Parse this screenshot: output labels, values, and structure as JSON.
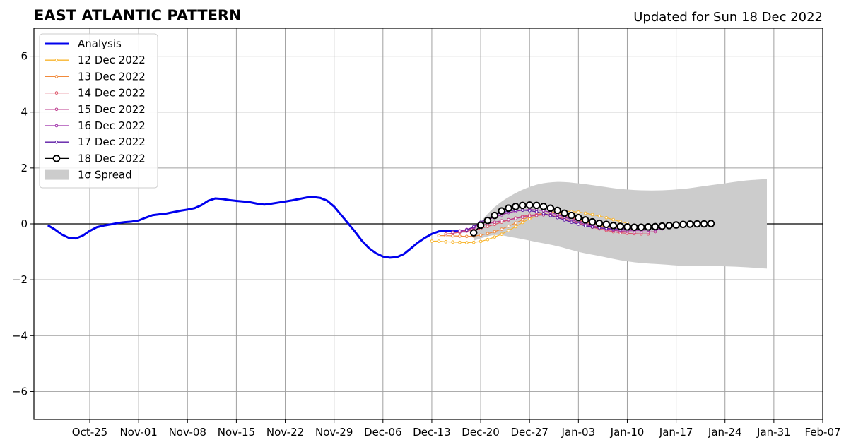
{
  "header": {
    "title": "EAST ATLANTIC PATTERN",
    "updated": "Updated for Sun 18 Dec 2022"
  },
  "chart_data": {
    "type": "line",
    "title": "EAST ATLANTIC PATTERN",
    "subtitle": "Updated for Sun 18 Dec 2022",
    "xlabel": "",
    "ylabel": "",
    "ylim": [
      -7,
      7
    ],
    "xlim": [
      "2022-10-17",
      "2023-02-07"
    ],
    "grid": true,
    "legend_position": "top-left",
    "xticks": [
      "Oct-25",
      "Nov-01",
      "Nov-08",
      "Nov-15",
      "Nov-22",
      "Nov-29",
      "Dec-06",
      "Dec-13",
      "Dec-20",
      "Dec-27",
      "Jan-03",
      "Jan-10",
      "Jan-17",
      "Jan-24",
      "Jan-31",
      "Feb-07"
    ],
    "yticks": [
      -6,
      -4,
      -2,
      0,
      2,
      4,
      6
    ],
    "ytick_labels": [
      "−6",
      "−4",
      "−2",
      "0",
      "2",
      "4",
      "6"
    ],
    "analysis": {
      "name": "Analysis",
      "color": "#0000ee",
      "start_date": "2022-10-19",
      "values": [
        -0.05,
        -0.2,
        -0.38,
        -0.5,
        -0.52,
        -0.42,
        -0.25,
        -0.12,
        -0.06,
        -0.02,
        0.03,
        0.06,
        0.08,
        0.12,
        0.22,
        0.31,
        0.34,
        0.37,
        0.42,
        0.47,
        0.51,
        0.56,
        0.67,
        0.83,
        0.91,
        0.89,
        0.85,
        0.82,
        0.8,
        0.77,
        0.72,
        0.69,
        0.72,
        0.76,
        0.8,
        0.84,
        0.89,
        0.94,
        0.96,
        0.93,
        0.83,
        0.62,
        0.32,
        0.02,
        -0.28,
        -0.61,
        -0.87,
        -1.05,
        -1.17,
        -1.21,
        -1.19,
        -1.08,
        -0.88,
        -0.67,
        -0.5,
        -0.36,
        -0.27,
        -0.26,
        -0.27,
        -0.27,
        -0.27
      ]
    },
    "forecasts": [
      {
        "name": "12 Dec 2022",
        "color": "#f8b52e",
        "start_date": "2022-12-13",
        "values": [
          -0.62,
          -0.62,
          -0.64,
          -0.65,
          -0.66,
          -0.67,
          -0.66,
          -0.63,
          -0.56,
          -0.47,
          -0.37,
          -0.24,
          -0.1,
          0.05,
          0.18,
          0.29,
          0.36,
          0.41,
          0.44,
          0.45,
          0.44,
          0.42,
          0.38,
          0.33,
          0.28,
          0.22,
          0.15,
          0.08,
          0.02
        ]
      },
      {
        "name": "13 Dec 2022",
        "color": "#f18a3b",
        "start_date": "2022-12-14",
        "values": [
          -0.42,
          -0.42,
          -0.43,
          -0.44,
          -0.45,
          -0.44,
          -0.4,
          -0.35,
          -0.28,
          -0.19,
          -0.08,
          0.03,
          0.15,
          0.26,
          0.33,
          0.38,
          0.4,
          0.38,
          0.32,
          0.24,
          0.15,
          0.07,
          0.0,
          -0.06,
          -0.11,
          -0.14,
          -0.17,
          -0.18,
          -0.19
        ]
      },
      {
        "name": "14 Dec 2022",
        "color": "#dc5468",
        "start_date": "2022-12-15",
        "values": [
          -0.36,
          -0.34,
          -0.3,
          -0.26,
          -0.22,
          -0.17,
          -0.09,
          -0.02,
          0.06,
          0.14,
          0.21,
          0.27,
          0.31,
          0.33,
          0.33,
          0.3,
          0.25,
          0.18,
          0.1,
          0.02,
          -0.06,
          -0.12,
          -0.18,
          -0.23,
          -0.28,
          -0.32,
          -0.34,
          -0.35,
          -0.36,
          -0.36
        ]
      },
      {
        "name": "15 Dec 2022",
        "color": "#bd3b8d",
        "start_date": "2022-12-16",
        "values": [
          -0.3,
          -0.28,
          -0.23,
          -0.15,
          -0.06,
          0.0,
          0.06,
          0.11,
          0.15,
          0.19,
          0.24,
          0.27,
          0.3,
          0.32,
          0.33,
          0.31,
          0.27,
          0.2,
          0.12,
          0.03,
          -0.06,
          -0.13,
          -0.19,
          -0.23,
          -0.26,
          -0.28,
          -0.29,
          -0.29,
          -0.29,
          -0.28
        ]
      },
      {
        "name": "16 Dec 2022",
        "color": "#9c2aa8",
        "start_date": "2022-12-17",
        "values": [
          -0.25,
          -0.2,
          -0.12,
          0.02,
          0.14,
          0.24,
          0.32,
          0.4,
          0.45,
          0.49,
          0.51,
          0.5,
          0.47,
          0.41,
          0.33,
          0.24,
          0.15,
          0.06,
          -0.02,
          -0.09,
          -0.14,
          -0.18,
          -0.21,
          -0.22,
          -0.23,
          -0.23,
          -0.23,
          -0.22,
          -0.21,
          -0.18
        ]
      },
      {
        "name": "17 Dec 2022",
        "color": "#5c1aa4",
        "start_date": "2022-12-18",
        "values": [
          -0.22,
          -0.1,
          0.06,
          0.2,
          0.31,
          0.4,
          0.46,
          0.49,
          0.49,
          0.47,
          0.43,
          0.37,
          0.3,
          0.22,
          0.14,
          0.06,
          -0.01,
          -0.07,
          -0.11,
          -0.14,
          -0.16,
          -0.18,
          -0.18,
          -0.18,
          -0.17,
          -0.15,
          -0.13,
          -0.11,
          -0.09,
          -0.07
        ]
      }
    ],
    "latest": {
      "name": "18 Dec 2022",
      "color": "#000000",
      "marker_fill": "#ffffff",
      "start_date": "2022-12-19",
      "values": [
        -0.32,
        -0.05,
        0.12,
        0.3,
        0.46,
        0.56,
        0.62,
        0.66,
        0.67,
        0.66,
        0.62,
        0.56,
        0.48,
        0.38,
        0.3,
        0.22,
        0.14,
        0.07,
        0.02,
        -0.02,
        -0.06,
        -0.09,
        -0.11,
        -0.12,
        -0.12,
        -0.11,
        -0.1,
        -0.08,
        -0.06,
        -0.04,
        -0.02,
        -0.01,
        0.0,
        0.0,
        0.01
      ]
    },
    "spread": {
      "name": "1σ Spread",
      "color": "#cccccc",
      "start_date": "2022-12-19",
      "dates_step_days": 3,
      "upper": [
        -0.2,
        0.6,
        1.1,
        1.4,
        1.5,
        1.45,
        1.35,
        1.25,
        1.2,
        1.2,
        1.25,
        1.35,
        1.45,
        1.55,
        1.6
      ],
      "lower": [
        -0.6,
        -0.4,
        -0.5,
        -0.65,
        -0.8,
        -1.0,
        -1.15,
        -1.3,
        -1.4,
        -1.45,
        -1.5,
        -1.5,
        -1.52,
        -1.55,
        -1.6
      ]
    },
    "legend": {
      "analysis_label": "Analysis",
      "spread_label": "1σ Spread"
    }
  }
}
